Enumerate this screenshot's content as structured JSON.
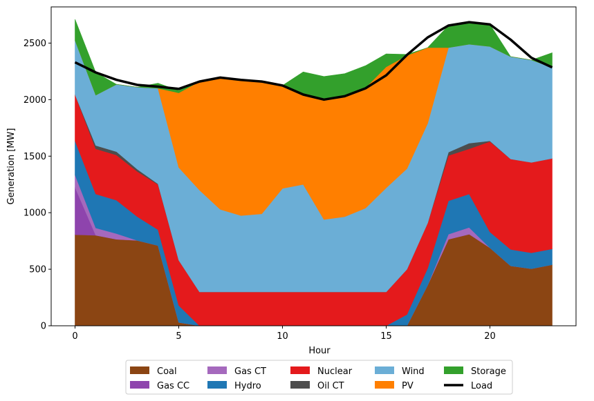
{
  "chart_data": {
    "type": "area",
    "stacked": true,
    "xlabel": "Hour",
    "ylabel": "Generation [MW]",
    "xlim": [
      -1.15,
      24.15
    ],
    "ylim": [
      0,
      2820
    ],
    "xticks": [
      0,
      5,
      10,
      15,
      20
    ],
    "yticks": [
      0,
      500,
      1000,
      1500,
      2000,
      2500
    ],
    "grid": false,
    "legend_position": "bottom-center",
    "x": [
      0,
      1,
      2,
      3,
      4,
      5,
      6,
      7,
      8,
      9,
      10,
      11,
      12,
      13,
      14,
      15,
      16,
      17,
      18,
      19,
      20,
      21,
      22,
      23
    ],
    "series": [
      {
        "name": "Coal",
        "color": "#8B4513",
        "values": [
          805,
          800,
          765,
          755,
          710,
          30,
          0,
          0,
          0,
          0,
          0,
          0,
          0,
          0,
          0,
          0,
          0,
          360,
          765,
          810,
          690,
          530,
          505,
          540
        ]
      },
      {
        "name": "Gas CC",
        "color": "#8E44AD",
        "values": [
          420,
          0,
          0,
          0,
          0,
          0,
          0,
          0,
          0,
          0,
          0,
          0,
          0,
          0,
          0,
          0,
          0,
          0,
          0,
          0,
          0,
          0,
          0,
          0
        ]
      },
      {
        "name": "Gas CT",
        "color": "#A569BD",
        "values": [
          110,
          65,
          50,
          0,
          0,
          0,
          0,
          0,
          0,
          0,
          0,
          0,
          0,
          0,
          0,
          0,
          0,
          0,
          45,
          60,
          0,
          0,
          0,
          0
        ]
      },
      {
        "name": "Hydro",
        "color": "#1F77B4",
        "values": [
          300,
          300,
          295,
          210,
          140,
          150,
          0,
          0,
          0,
          0,
          0,
          0,
          0,
          0,
          0,
          0,
          100,
          150,
          295,
          295,
          140,
          145,
          140,
          140
        ]
      },
      {
        "name": "Nuclear",
        "color": "#E41A1C",
        "values": [
          410,
          400,
          400,
          400,
          400,
          400,
          300,
          300,
          300,
          300,
          300,
          300,
          300,
          300,
          300,
          300,
          400,
          400,
          400,
          400,
          800,
          800,
          800,
          800
        ]
      },
      {
        "name": "Oil CT",
        "color": "#4D4D4D",
        "values": [
          0,
          30,
          30,
          20,
          5,
          0,
          0,
          0,
          0,
          0,
          0,
          0,
          0,
          0,
          0,
          0,
          0,
          0,
          30,
          50,
          5,
          0,
          0,
          0
        ]
      },
      {
        "name": "Wind",
        "color": "#6BAED6",
        "values": [
          480,
          445,
          595,
          725,
          845,
          820,
          900,
          730,
          675,
          690,
          915,
          950,
          640,
          665,
          740,
          920,
          890,
          880,
          925,
          875,
          835,
          905,
          905,
          805
        ]
      },
      {
        "name": "PV",
        "color": "#FF7F00",
        "values": [
          0,
          0,
          0,
          0,
          0,
          660,
          960,
          1165,
          1200,
          1170,
          910,
          800,
          1065,
          1070,
          1065,
          1070,
          1000,
          670,
          0,
          0,
          0,
          0,
          0,
          0
        ]
      },
      {
        "name": "Storage",
        "color": "#33A02C",
        "values": [
          185,
          200,
          0,
          0,
          45,
          20,
          0,
          0,
          0,
          0,
          0,
          195,
          200,
          195,
          195,
          115,
          10,
          0,
          195,
          195,
          195,
          0,
          0,
          130
        ]
      }
    ],
    "line_series": [
      {
        "name": "Load",
        "color": "#000000",
        "values": [
          2330,
          2240,
          2175,
          2130,
          2115,
          2095,
          2160,
          2195,
          2175,
          2160,
          2125,
          2045,
          2000,
          2030,
          2100,
          2215,
          2395,
          2550,
          2655,
          2685,
          2665,
          2530,
          2370,
          2285
        ]
      }
    ]
  }
}
